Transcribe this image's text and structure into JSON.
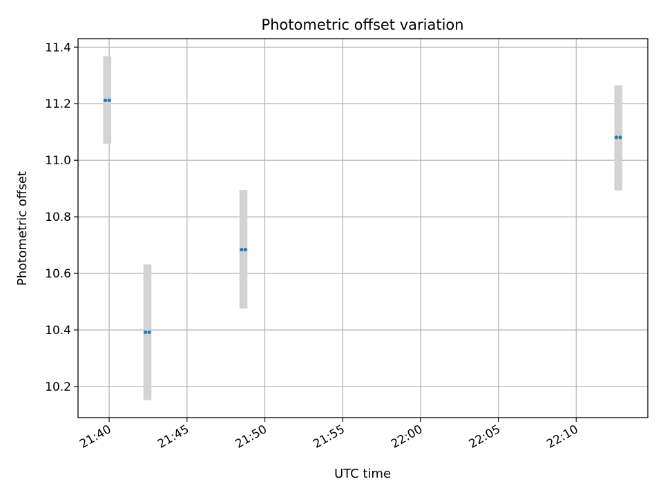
{
  "chart_data": {
    "type": "scatter",
    "title": "Photometric offset variation",
    "xlabel": "UTC time",
    "ylabel": "Photometric offset",
    "x_tick_labels": [
      "21:40",
      "21:45",
      "21:50",
      "21:55",
      "22:00",
      "22:05",
      "22:10"
    ],
    "x_tick_minutes": [
      0,
      5,
      10,
      15,
      20,
      25,
      30
    ],
    "xlim_minutes_after_21_40": [
      -2,
      34.6
    ],
    "y_ticks": [
      10.2,
      10.4,
      10.6,
      10.8,
      11.0,
      11.2,
      11.4
    ],
    "y_tick_labels": [
      "10.2",
      "10.4",
      "10.6",
      "10.8",
      "11.0",
      "11.2",
      "11.4"
    ],
    "ylim": [
      10.09,
      11.43
    ],
    "grid": true,
    "errorbar_color": "#d3d3d3",
    "point_color": "#1f77b4",
    "series": [
      {
        "points": [
          {
            "time": "21:39:45",
            "minutes": -0.25,
            "y": 11.212,
            "ylo": 11.058,
            "yhi": 11.368
          },
          {
            "time": "21:40:00",
            "minutes": 0.0,
            "y": 11.212,
            "ylo": 11.058,
            "yhi": 11.368
          },
          {
            "time": "21:42:20",
            "minutes": 2.33,
            "y": 10.392,
            "ylo": 10.152,
            "yhi": 10.632
          },
          {
            "time": "21:42:35",
            "minutes": 2.58,
            "y": 10.392,
            "ylo": 10.152,
            "yhi": 10.632
          },
          {
            "time": "21:48:30",
            "minutes": 8.5,
            "y": 10.684,
            "ylo": 10.476,
            "yhi": 10.895
          },
          {
            "time": "21:48:45",
            "minutes": 8.75,
            "y": 10.684,
            "ylo": 10.476,
            "yhi": 10.895
          },
          {
            "time": "22:12:35",
            "minutes": 32.58,
            "y": 11.081,
            "ylo": 10.893,
            "yhi": 11.265
          },
          {
            "time": "22:12:50",
            "minutes": 32.83,
            "y": 11.081,
            "ylo": 10.893,
            "yhi": 11.265
          }
        ]
      }
    ]
  }
}
